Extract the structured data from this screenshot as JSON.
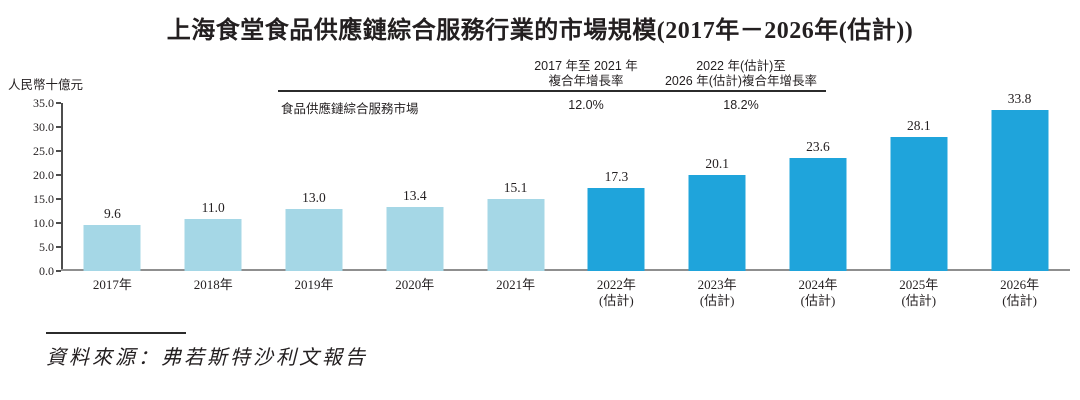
{
  "title": "上海食堂食品供應鏈綜合服務行業的市場規模(2017年－2026年(估計))",
  "cagr_table": {
    "row_label": "食品供應鏈綜合服務市場",
    "columns": [
      {
        "header_line1": "2017 年至 2021 年",
        "header_line2": "複合年增長率",
        "value": "12.0%"
      },
      {
        "header_line1": "2022 年(估計)至",
        "header_line2": "2026 年(估計)複合年增長率",
        "value": "18.2%"
      }
    ]
  },
  "chart_data": {
    "type": "bar",
    "title": "上海食堂食品供應鏈綜合服務行業的市場規模(2017年－2026年(估計))",
    "ylabel": "人民幣十億元",
    "xlabel": "",
    "ylim": [
      0,
      35
    ],
    "ytick_step": 5,
    "grid": false,
    "legend": null,
    "categories": [
      "2017年",
      "2018年",
      "2019年",
      "2020年",
      "2021年",
      "2022年(估計)",
      "2023年(估計)",
      "2024年(估計)",
      "2025年(估計)",
      "2026年(估計)"
    ],
    "values": [
      9.6,
      11.0,
      13.0,
      13.4,
      15.1,
      17.3,
      20.1,
      23.6,
      28.1,
      33.8
    ],
    "value_labels": [
      "9.6",
      "11.0",
      "13.0",
      "13.4",
      "15.1",
      "17.3",
      "20.1",
      "23.6",
      "28.1",
      "33.8"
    ],
    "x_tick_labels": [
      {
        "line1": "2017年",
        "line2": ""
      },
      {
        "line1": "2018年",
        "line2": ""
      },
      {
        "line1": "2019年",
        "line2": ""
      },
      {
        "line1": "2020年",
        "line2": ""
      },
      {
        "line1": "2021年",
        "line2": ""
      },
      {
        "line1": "2022年",
        "line2": "(估計)"
      },
      {
        "line1": "2023年",
        "line2": "(估計)"
      },
      {
        "line1": "2024年",
        "line2": "(估計)"
      },
      {
        "line1": "2025年",
        "line2": "(估計)"
      },
      {
        "line1": "2026年",
        "line2": "(估計)"
      }
    ],
    "estimated_from_index": 5,
    "colors": {
      "historical_bar": "#A5D7E6",
      "estimated_bar": "#1FA4DB"
    }
  },
  "source": "資料來源：弗若斯特沙利文報告"
}
